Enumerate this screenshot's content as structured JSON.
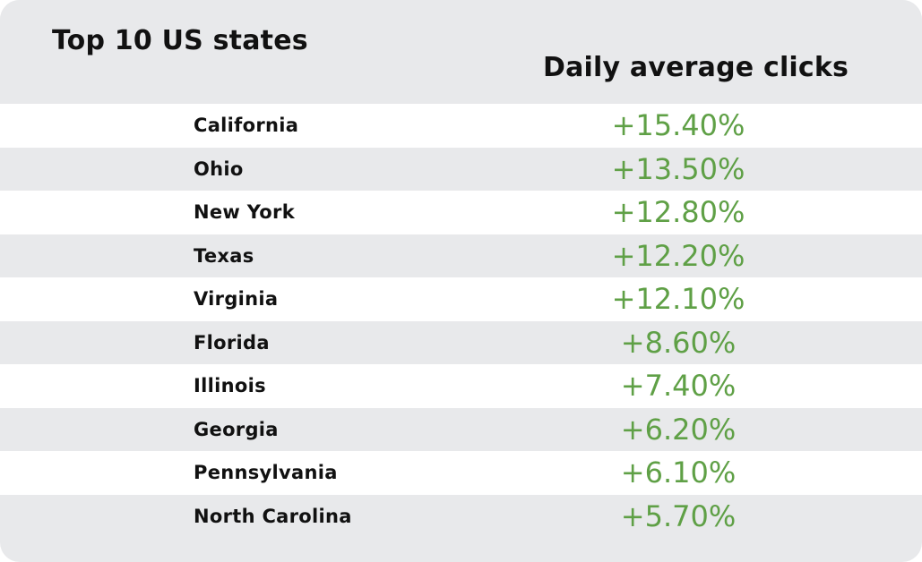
{
  "chart_data": {
    "type": "table",
    "title": "Top 10 US states",
    "column_header": "Daily average clicks",
    "rows": [
      {
        "state": "California",
        "value": "+15.40%"
      },
      {
        "state": "Ohio",
        "value": "+13.50%"
      },
      {
        "state": "New York",
        "value": "+12.80%"
      },
      {
        "state": "Texas",
        "value": "+12.20%"
      },
      {
        "state": "Virginia",
        "value": "+12.10%"
      },
      {
        "state": "Florida",
        "value": "+8.60%"
      },
      {
        "state": "Illinois",
        "value": "+7.40%"
      },
      {
        "state": "Georgia",
        "value": "+6.20%"
      },
      {
        "state": "Pennsylvania",
        "value": "+6.10%"
      },
      {
        "state": "North Carolina",
        "value": "+5.70%"
      }
    ],
    "colors": {
      "value_text": "#5fa046",
      "row_alt": "#e8e9eb",
      "row": "#ffffff"
    }
  }
}
